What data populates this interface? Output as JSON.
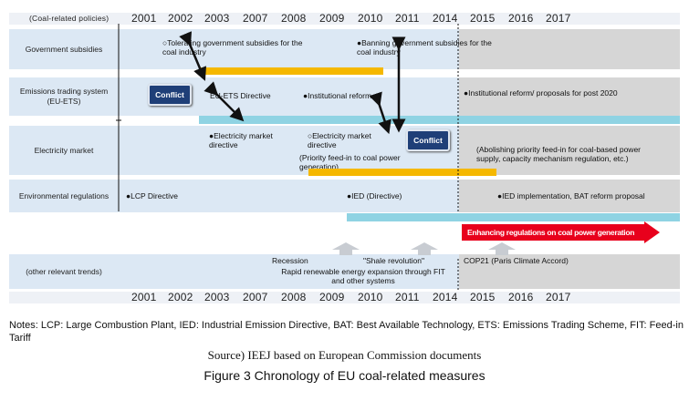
{
  "header": {
    "corner_label": "(Coal-related policies)",
    "years": [
      "2001",
      "2002",
      "2003",
      "2007",
      "2008",
      "2009",
      "2010",
      "2011",
      "2014",
      "2015",
      "2016",
      "2017"
    ]
  },
  "rows": {
    "subsidies": {
      "label": "Government subsidies",
      "note_tolerating": "○Tolerating government subsidies for the coal industry",
      "note_banning": "●Banning government subsidies for the coal industry"
    },
    "ets": {
      "label": "Emissions trading system (EU-ETS)",
      "conflict": "Conflict",
      "note_directive": "EU-ETS Directive",
      "note_reform": "●Institutional reform",
      "note_post2020": "●Institutional reform/ proposals for post 2020"
    },
    "electricity": {
      "label": "Electricity market",
      "note_directive1": "●Electricity     market directive",
      "note_directive2": "○Electricity market directive",
      "note_priority": "(Priority feed-in to coal power generation)",
      "conflict": "Conflict",
      "note_abolish": "(Abolishing priority feed-in for coal-based power supply, capacity mechanism regulation, etc.)"
    },
    "environment": {
      "label": "Environmental regulations",
      "note_lcp": "●LCP Directive",
      "note_ied": "●IED (Directive)",
      "note_ied_impl": "●IED implementation, BAT reform proposal",
      "arrow_label": "Enhancing regulations on coal power generation"
    },
    "trends": {
      "label": "(other relevant trends)",
      "recession": "Recession",
      "shale": "\"Shale revolution\"",
      "renewable": "Rapid renewable energy expansion through FIT and other systems",
      "cop21": "COP21 (Paris Climate Accord)"
    }
  },
  "notes": "Notes: LCP: Large Combustion Plant, IED: Industrial Emission Directive, BAT: Best Available Technology, ETS: Emissions Trading Scheme, FIT: Feed-in Tariff",
  "source": "Source) IEEJ based on European Commission documents",
  "figure_title": "Figure 3 Chronology of EU coal-related measures",
  "colors": {
    "row_blue": "#dce8f4",
    "gray": "#d6d6d6",
    "orange_bar": "#f5b800",
    "cyan_bar": "#8fd3e3",
    "conflict_box": "#1f3f78",
    "red_arrow": "#e8001c"
  }
}
